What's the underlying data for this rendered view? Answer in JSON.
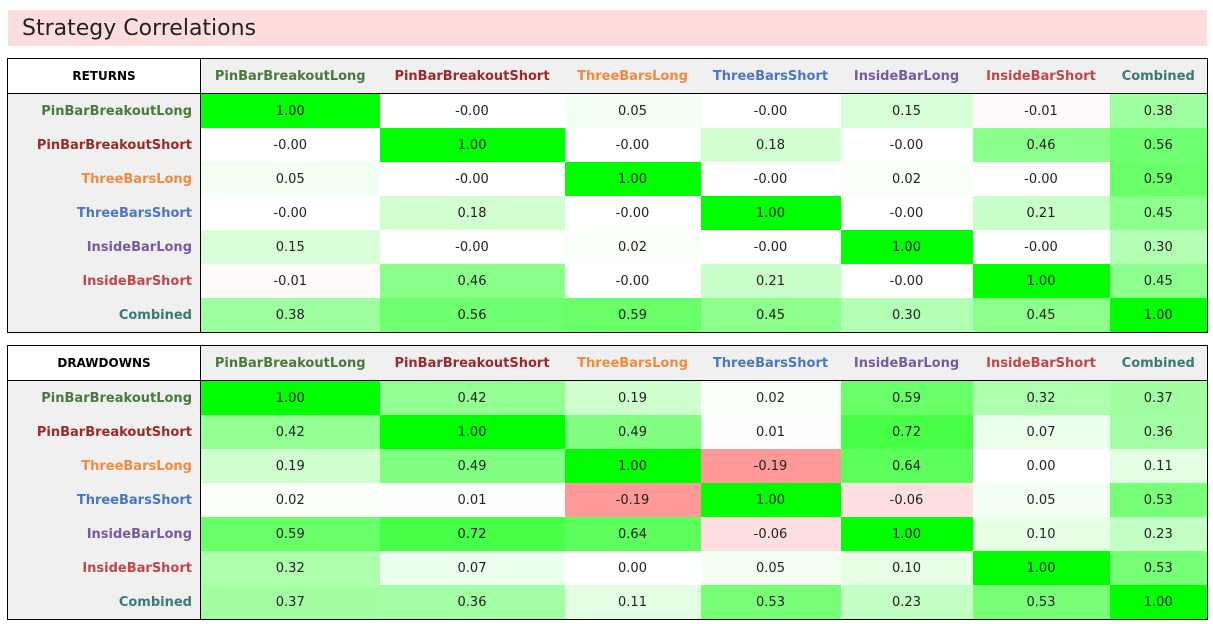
{
  "page_title": "Strategy Correlations",
  "strategies": [
    {
      "name": "PinBarBreakoutLong",
      "color": "#4a7a3a"
    },
    {
      "name": "PinBarBreakoutShort",
      "color": "#9c2a2a"
    },
    {
      "name": "ThreeBarsLong",
      "color": "#f08a3c"
    },
    {
      "name": "ThreeBarsShort",
      "color": "#4a78c0"
    },
    {
      "name": "InsideBarLong",
      "color": "#7a5aa0"
    },
    {
      "name": "InsideBarShort",
      "color": "#c04848"
    },
    {
      "name": "Combined",
      "color": "#3a7a7a"
    }
  ],
  "returns": {
    "label": "RETURNS",
    "values": [
      [
        1.0,
        -0.0,
        0.05,
        -0.0,
        0.15,
        -0.01,
        0.38
      ],
      [
        -0.0,
        1.0,
        -0.0,
        0.18,
        -0.0,
        0.46,
        0.56
      ],
      [
        0.05,
        -0.0,
        1.0,
        -0.0,
        0.02,
        -0.0,
        0.59
      ],
      [
        -0.0,
        0.18,
        -0.0,
        1.0,
        -0.0,
        0.21,
        0.45
      ],
      [
        0.15,
        -0.0,
        0.02,
        -0.0,
        1.0,
        -0.0,
        0.3
      ],
      [
        -0.01,
        0.46,
        -0.0,
        0.21,
        -0.0,
        1.0,
        0.45
      ],
      [
        0.38,
        0.56,
        0.59,
        0.45,
        0.3,
        0.45,
        1.0
      ]
    ],
    "display": [
      [
        "1.00",
        "-0.00",
        "0.05",
        "-0.00",
        "0.15",
        "-0.01",
        "0.38"
      ],
      [
        "-0.00",
        "1.00",
        "-0.00",
        "0.18",
        "-0.00",
        "0.46",
        "0.56"
      ],
      [
        "0.05",
        "-0.00",
        "1.00",
        "-0.00",
        "0.02",
        "-0.00",
        "0.59"
      ],
      [
        "-0.00",
        "0.18",
        "-0.00",
        "1.00",
        "-0.00",
        "0.21",
        "0.45"
      ],
      [
        "0.15",
        "-0.00",
        "0.02",
        "-0.00",
        "1.00",
        "-0.00",
        "0.30"
      ],
      [
        "-0.01",
        "0.46",
        "-0.00",
        "0.21",
        "-0.00",
        "1.00",
        "0.45"
      ],
      [
        "0.38",
        "0.56",
        "0.59",
        "0.45",
        "0.30",
        "0.45",
        "1.00"
      ]
    ]
  },
  "drawdowns": {
    "label": "DRAWDOWNS",
    "values": [
      [
        1.0,
        0.42,
        0.19,
        0.02,
        0.59,
        0.32,
        0.37
      ],
      [
        0.42,
        1.0,
        0.49,
        0.01,
        0.72,
        0.07,
        0.36
      ],
      [
        0.19,
        0.49,
        1.0,
        -0.19,
        0.64,
        0.0,
        0.11
      ],
      [
        0.02,
        0.01,
        -0.19,
        1.0,
        -0.06,
        0.05,
        0.53
      ],
      [
        0.59,
        0.72,
        0.64,
        -0.06,
        1.0,
        0.1,
        0.23
      ],
      [
        0.32,
        0.07,
        0.0,
        0.05,
        0.1,
        1.0,
        0.53
      ],
      [
        0.37,
        0.36,
        0.11,
        0.53,
        0.23,
        0.53,
        1.0
      ]
    ],
    "display": [
      [
        "1.00",
        "0.42",
        "0.19",
        "0.02",
        "0.59",
        "0.32",
        "0.37"
      ],
      [
        "0.42",
        "1.00",
        "0.49",
        "0.01",
        "0.72",
        "0.07",
        "0.36"
      ],
      [
        "0.19",
        "0.49",
        "1.00",
        "-0.19",
        "0.64",
        "0.00",
        "0.11"
      ],
      [
        "0.02",
        "0.01",
        "-0.19",
        "1.00",
        "-0.06",
        "0.05",
        "0.53"
      ],
      [
        "0.59",
        "0.72",
        "0.64",
        "-0.06",
        "1.00",
        "0.10",
        "0.23"
      ],
      [
        "0.32",
        "0.07",
        "0.00",
        "0.05",
        "0.10",
        "1.00",
        "0.53"
      ],
      [
        "0.37",
        "0.36",
        "0.11",
        "0.53",
        "0.23",
        "0.53",
        "1.00"
      ]
    ]
  },
  "colors": {
    "positive": "#00ff00",
    "negative": "#ff9999",
    "neutral": "#ffffff"
  }
}
